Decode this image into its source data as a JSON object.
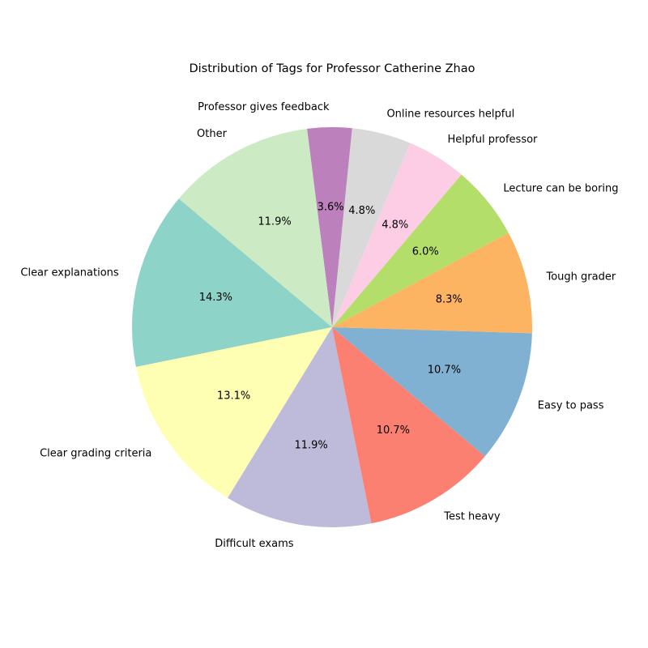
{
  "chart_data": {
    "type": "pie",
    "title": "Distribution of Tags for Professor Catherine Zhao",
    "start_angle_deg": 140,
    "direction": "counterclockwise",
    "legend": "none",
    "slices": [
      {
        "label": "Clear explanations",
        "value": 14.3,
        "pct_label": "14.3%",
        "color": "#8dd3c7"
      },
      {
        "label": "Clear grading criteria",
        "value": 13.1,
        "pct_label": "13.1%",
        "color": "#ffffb3"
      },
      {
        "label": "Difficult exams",
        "value": 11.9,
        "pct_label": "11.9%",
        "color": "#bebada"
      },
      {
        "label": "Test heavy",
        "value": 10.7,
        "pct_label": "10.7%",
        "color": "#fb8072"
      },
      {
        "label": "Easy to pass",
        "value": 10.7,
        "pct_label": "10.7%",
        "color": "#80b1d3"
      },
      {
        "label": "Tough grader",
        "value": 8.3,
        "pct_label": "8.3%",
        "color": "#fdb462"
      },
      {
        "label": "Lecture can be boring",
        "value": 6.0,
        "pct_label": "6.0%",
        "color": "#b3de69"
      },
      {
        "label": "Helpful professor",
        "value": 4.8,
        "pct_label": "4.8%",
        "color": "#fccde5"
      },
      {
        "label": "Online resources helpful",
        "value": 4.8,
        "pct_label": "4.8%",
        "color": "#d9d9d9"
      },
      {
        "label": "Professor gives feedback",
        "value": 3.6,
        "pct_label": "3.6%",
        "color": "#bc80bd"
      },
      {
        "label": "Other",
        "value": 11.9,
        "pct_label": "11.9%",
        "color": "#ccebc5"
      }
    ]
  }
}
